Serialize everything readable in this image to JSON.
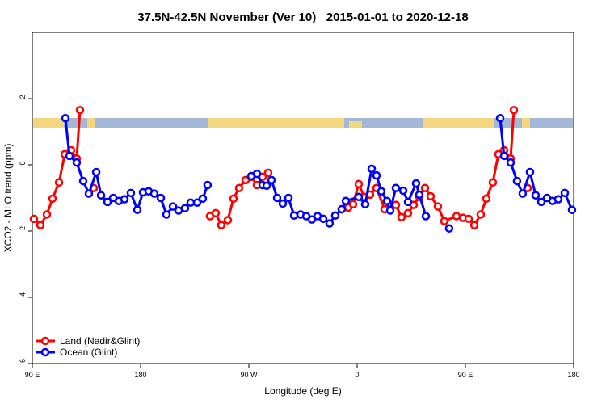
{
  "chart_data": {
    "type": "line",
    "title": "37.5N-42.5N November (Ver 10)   2015-01-01 to 2020-12-18",
    "x_label": "Longitude (deg E)",
    "y_label": "XCO2 - MLO trend (ppm)",
    "xlim": [
      90,
      540
    ],
    "xticks": [
      {
        "value": 90,
        "label": "90 E"
      },
      {
        "value": 180,
        "label": "180"
      },
      {
        "value": 270,
        "label": "90 W"
      },
      {
        "value": 360,
        "label": "0"
      },
      {
        "value": 450,
        "label": "90 E"
      },
      {
        "value": 540,
        "label": "180"
      }
    ],
    "ylim": [
      -6,
      4
    ],
    "yticks": [
      -6,
      -4,
      -2,
      0,
      2
    ],
    "legend": "lower left",
    "series": [
      {
        "name": "Land (Nadir&Glint)",
        "color": "#ff0000",
        "x": [
          91.3,
          96.7,
          102.1,
          106.8,
          112.2,
          116.9,
          122.2,
          126.9,
          129.6,
          null,
          141.0,
          null,
          237.7,
          242.4,
          247.1,
          252.5,
          257.2,
          261.9,
          267.3,
          272.0,
          276.7,
          281.4,
          286.1,
          null,
          347.2,
          352.6,
          356.6,
          361.3,
          366.0,
          370.7,
          376.1,
          382.8,
          387.5,
          392.2,
          396.9,
          402.3,
          407.0,
          411.7,
          416.4,
          421.1,
          427.1,
          432.5,
          442.6,
          448.0,
          452.7,
          457.4,
          462.7,
          467.4,
          472.8,
          477.5,
          482.2,
          487.6,
          490.3,
          null,
          501.7
        ],
        "values": [
          -1.63,
          -1.82,
          -1.5,
          -1.02,
          -0.53,
          0.32,
          0.44,
          0.19,
          1.65,
          null,
          -0.7,
          null,
          -1.55,
          -1.46,
          -1.82,
          -1.67,
          -1.02,
          -0.7,
          -0.46,
          -0.36,
          -0.61,
          -0.36,
          -0.24,
          null,
          -1.34,
          -1.29,
          -1.19,
          -0.58,
          -0.97,
          -0.9,
          -0.7,
          -1.34,
          -1.26,
          -1.21,
          -1.58,
          -1.46,
          -1.21,
          -0.97,
          -0.7,
          -0.95,
          -1.26,
          -1.7,
          -1.55,
          -1.6,
          -1.63,
          -1.82,
          -1.5,
          -1.02,
          -0.53,
          0.32,
          0.44,
          0.19,
          1.65,
          null,
          -0.7
        ]
      },
      {
        "name": "Ocean (Glint)",
        "color": "#0000ff",
        "x": [
          117.5,
          120.9,
          126.9,
          132.3,
          137.0,
          143.1,
          147.1,
          152.5,
          157.2,
          161.9,
          166.6,
          171.9,
          177.3,
          182.0,
          186.7,
          191.4,
          196.8,
          201.5,
          206.9,
          211.6,
          216.9,
          221.6,
          227.0,
          231.7,
          235.7,
          null,
          272.0,
          276.7,
          281.4,
          284.8,
          288.8,
          293.5,
          298.2,
          302.9,
          307.6,
          313.0,
          317.7,
          322.4,
          327.1,
          331.8,
          337.1,
          341.8,
          347.2,
          350.6,
          361.3,
          366.7,
          372.1,
          376.1,
          380.1,
          384.8,
          387.5,
          392.2,
          398.3,
          402.3,
          409.0,
          411.7,
          417.1,
          null,
          436.5,
          null,
          478.9,
          482.2,
          487.6,
          492.9,
          497.6,
          503.7,
          508.4,
          513.1,
          517.8,
          522.5,
          527.2,
          532.6,
          538.6
        ],
        "values": [
          1.41,
          0.27,
          0.07,
          -0.49,
          -0.87,
          -0.22,
          -0.92,
          -1.12,
          -1.0,
          -1.09,
          -1.04,
          -0.85,
          -1.36,
          -0.83,
          -0.8,
          -0.87,
          -1.0,
          -1.5,
          -1.26,
          -1.38,
          -1.31,
          -1.14,
          -1.14,
          -1.02,
          -0.61,
          null,
          -0.34,
          -0.27,
          -0.61,
          -0.63,
          -0.46,
          -1.0,
          -1.17,
          -1.0,
          -1.53,
          -1.5,
          -1.55,
          -1.65,
          -1.55,
          -1.63,
          -1.77,
          -1.53,
          -1.34,
          -1.09,
          -0.97,
          -1.19,
          -0.12,
          -0.32,
          -0.8,
          -1.09,
          -1.38,
          -0.7,
          -0.78,
          -1.12,
          -0.56,
          -0.9,
          -1.55,
          null,
          -1.92,
          null,
          1.41,
          0.27,
          0.07,
          -0.49,
          -0.87,
          -0.22,
          -0.92,
          -1.12,
          -1.0,
          -1.09,
          -1.04,
          -0.85,
          -1.36
        ]
      }
    ]
  }
}
